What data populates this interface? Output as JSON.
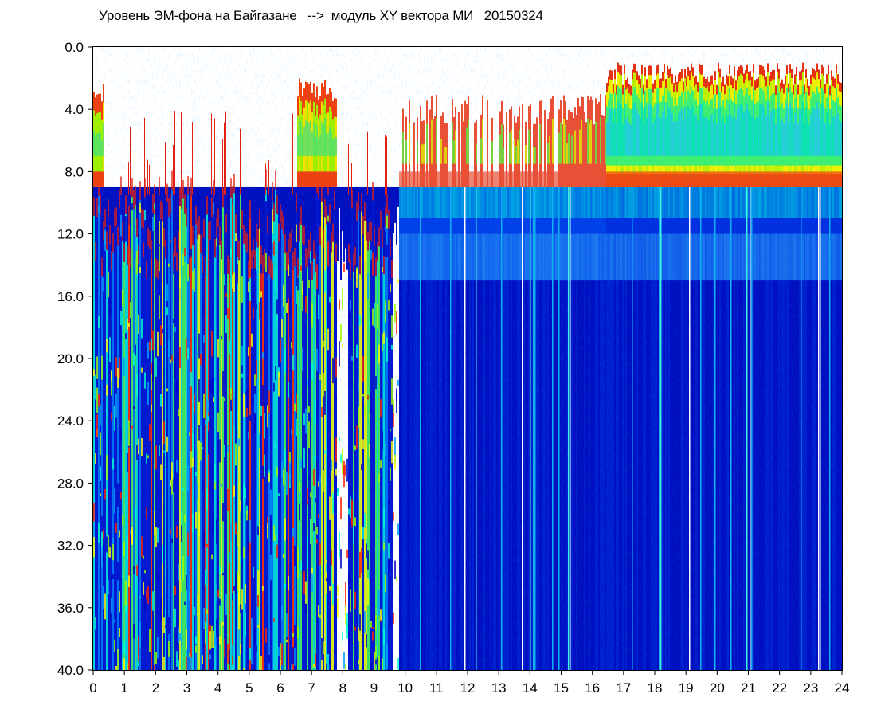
{
  "chart_data": {
    "type": "heatmap",
    "title": "Уровень ЭМ-фона на Байгазане   -->  модуль XY вектора МИ   20150324",
    "xlabel": "",
    "ylabel": "",
    "xlim": [
      0,
      24
    ],
    "ylim": [
      0,
      40
    ],
    "y_inverted": true,
    "grid": false,
    "x_ticks": [
      "0",
      "1",
      "2",
      "3",
      "4",
      "5",
      "6",
      "7",
      "8",
      "9",
      "10",
      "11",
      "12",
      "13",
      "14",
      "15",
      "16",
      "17",
      "18",
      "19",
      "20",
      "21",
      "22",
      "23",
      "24"
    ],
    "y_ticks": [
      "0.0",
      "4.0",
      "8.0",
      "12.0",
      "16.0",
      "20.0",
      "24.0",
      "28.0",
      "32.0",
      "36.0",
      "40.0"
    ],
    "colormap": [
      "#0000c8",
      "#00a0ff",
      "#00ffd0",
      "#a0ff00",
      "#ffff00",
      "#ff2000"
    ],
    "background_color": "#0010c0",
    "zones": [
      {
        "x": [
          0.0,
          0.3
        ],
        "y": [
          2,
          9
        ],
        "levels": "red-green"
      },
      {
        "x": [
          0.3,
          6.6
        ],
        "y": [
          9,
          40
        ],
        "levels": "dense stripes blue/green/red"
      },
      {
        "x": [
          6.5,
          7.8
        ],
        "y": [
          2,
          9
        ],
        "levels": "red-green"
      },
      {
        "x": [
          7.8,
          9.8
        ],
        "y": [
          9,
          40
        ],
        "levels": "sparse stripes blue/green/red"
      },
      {
        "x": [
          9.8,
          24.0
        ],
        "y": [
          3,
          9
        ],
        "levels": "red-green-cyan"
      },
      {
        "x": [
          9.8,
          24.0
        ],
        "y": [
          9,
          15
        ],
        "levels": "blue-cyan"
      },
      {
        "x": [
          9.8,
          24.0
        ],
        "y": [
          15,
          40
        ],
        "levels": "blue"
      },
      {
        "x": [
          16.4,
          24.0
        ],
        "y": [
          0.7,
          8.5
        ],
        "levels": "red-yellow-green-cyan dense"
      }
    ]
  }
}
